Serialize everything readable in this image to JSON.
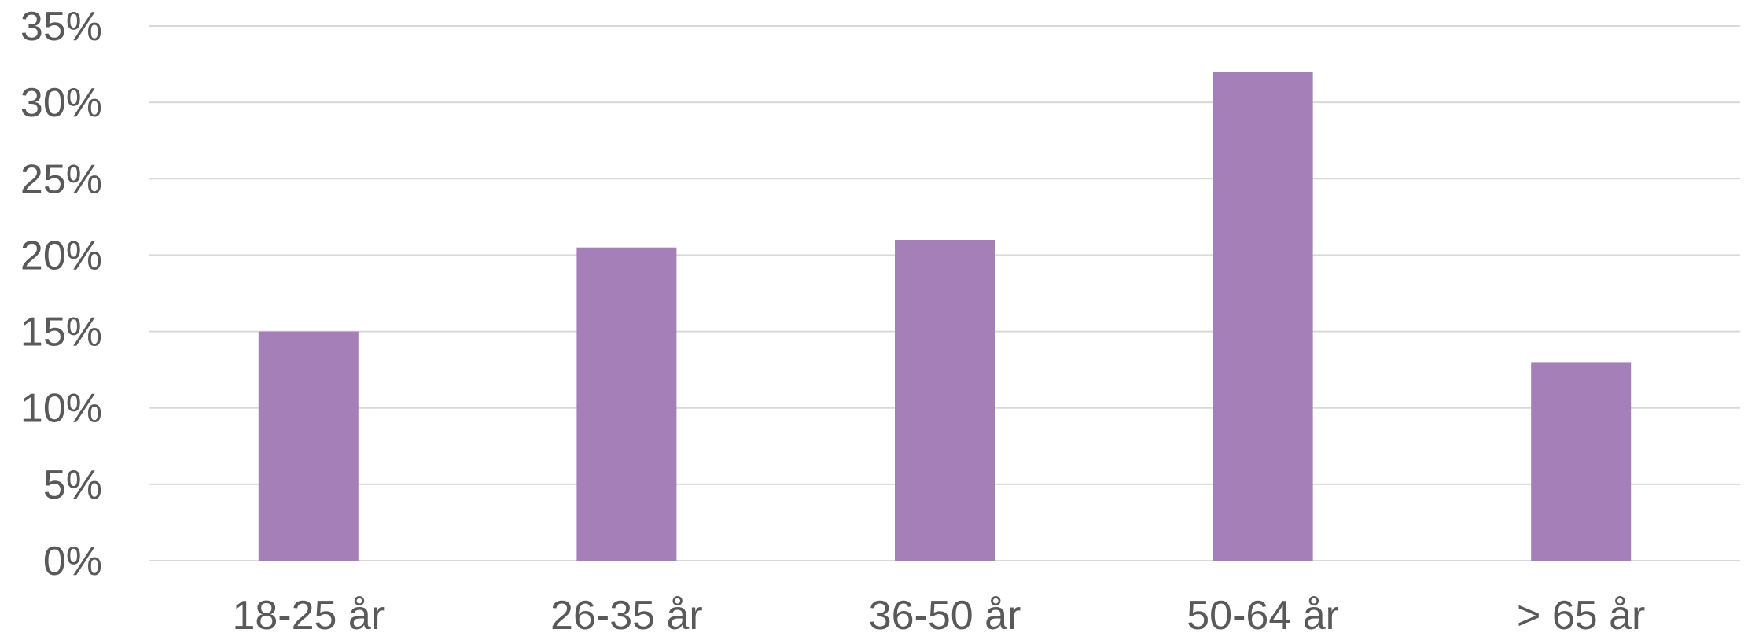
{
  "chart_data": {
    "type": "bar",
    "title": "",
    "xlabel": "",
    "ylabel": "",
    "categories": [
      "18-25 år",
      "26-35 år",
      "36-50 år",
      "50-64 år",
      "> 65 år"
    ],
    "values": [
      15,
      20.5,
      21,
      32,
      13
    ],
    "ylim": [
      0,
      35
    ],
    "yticks": [
      0,
      5,
      10,
      15,
      20,
      25,
      30,
      35
    ],
    "ytick_labels": [
      "0%",
      "5%",
      "10%",
      "15%",
      "20%",
      "25%",
      "30%",
      "35%"
    ],
    "grid": true,
    "legend": "none",
    "bar_color": "#a47fb8",
    "grid_color": "#d9d9d9",
    "text_color": "#595959"
  }
}
